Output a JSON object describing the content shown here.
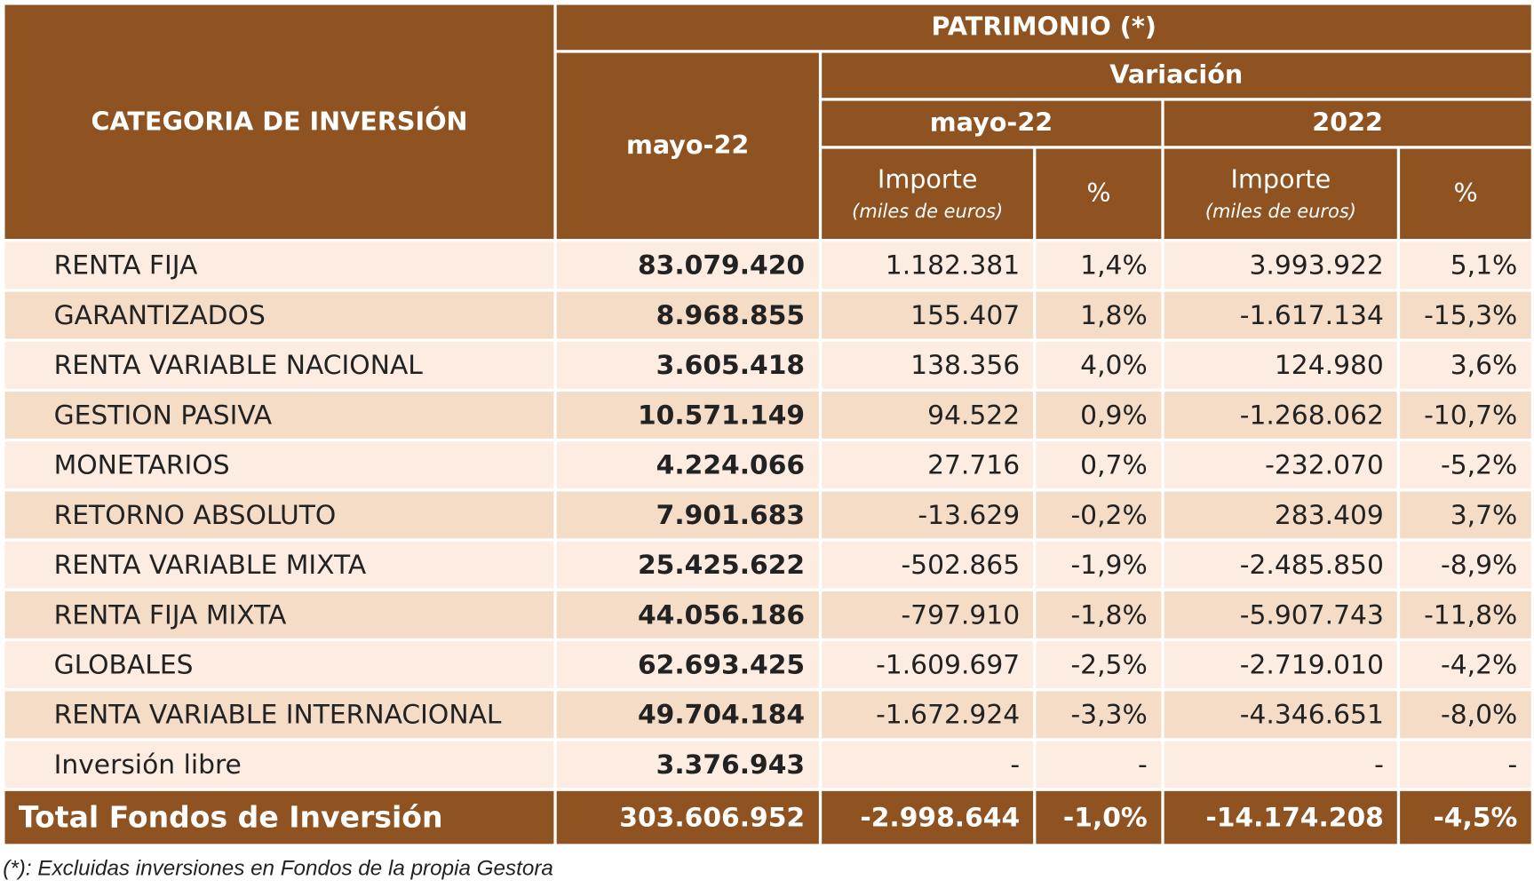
{
  "header": {
    "category": "CATEGORIA DE INVERSIÓN",
    "patrimonio": "PATRIMONIO (*)",
    "current": "mayo-22",
    "variacion": "Variación",
    "period_month": "mayo-22",
    "period_year": "2022",
    "importe": "Importe",
    "importe_unit": "(miles de euros)",
    "pct": "%"
  },
  "table": {
    "rows": [
      [
        "RENTA FIJA",
        "83.079.420",
        "1.182.381",
        "1,4%",
        "3.993.922",
        "5,1%"
      ],
      [
        "GARANTIZADOS",
        "8.968.855",
        "155.407",
        "1,8%",
        "-1.617.134",
        "-15,3%"
      ],
      [
        "RENTA VARIABLE NACIONAL",
        "3.605.418",
        "138.356",
        "4,0%",
        "124.980",
        "3,6%"
      ],
      [
        "GESTION PASIVA",
        "10.571.149",
        "94.522",
        "0,9%",
        "-1.268.062",
        "-10,7%"
      ],
      [
        "MONETARIOS",
        "4.224.066",
        "27.716",
        "0,7%",
        "-232.070",
        "-5,2%"
      ],
      [
        "RETORNO ABSOLUTO",
        "7.901.683",
        "-13.629",
        "-0,2%",
        "283.409",
        "3,7%"
      ],
      [
        "RENTA VARIABLE MIXTA",
        "25.425.622",
        "-502.865",
        "-1,9%",
        "-2.485.850",
        "-8,9%"
      ],
      [
        "RENTA FIJA MIXTA",
        "44.056.186",
        "-797.910",
        "-1,8%",
        "-5.907.743",
        "-11,8%"
      ],
      [
        "GLOBALES",
        "62.693.425",
        "-1.609.697",
        "-2,5%",
        "-2.719.010",
        "-4,2%"
      ],
      [
        "RENTA VARIABLE INTERNACIONAL",
        "49.704.184",
        "-1.672.924",
        "-3,3%",
        "-4.346.651",
        "-8,0%"
      ],
      [
        "Inversión libre",
        "3.376.943",
        "-",
        "-",
        "-",
        "-"
      ]
    ],
    "total": [
      "Total Fondos de Inversión",
      "303.606.952",
      "-2.998.644",
      "-1,0%",
      "-14.174.208",
      "-4,5%"
    ]
  },
  "footnote": "(*): Excluidas inversiones en Fondos de la propia Gestora"
}
